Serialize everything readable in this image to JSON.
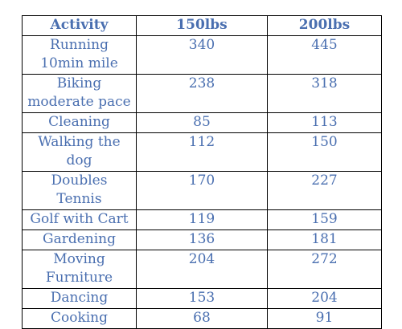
{
  "table": {
    "headers": [
      "Activity",
      "150lbs",
      "200lbs"
    ],
    "rows": [
      {
        "activity": "Running 10min mile",
        "w150": "340",
        "w200": "445"
      },
      {
        "activity": "Biking moderate pace",
        "w150": "238",
        "w200": "318"
      },
      {
        "activity": "Cleaning",
        "w150": "85",
        "w200": "113"
      },
      {
        "activity": "Walking the dog",
        "w150": "112",
        "w200": "150"
      },
      {
        "activity": "Doubles Tennis",
        "w150": "170",
        "w200": "227"
      },
      {
        "activity": "Golf with Cart",
        "w150": "119",
        "w200": "159"
      },
      {
        "activity": "Gardening",
        "w150": "136",
        "w200": "181"
      },
      {
        "activity": "Moving Furniture",
        "w150": "204",
        "w200": "272"
      },
      {
        "activity": "Dancing",
        "w150": "153",
        "w200": "204"
      },
      {
        "activity": "Cooking",
        "w150": "68",
        "w200": "91"
      }
    ]
  },
  "colors": {
    "text": "#4a6fb0",
    "border": "#000000"
  }
}
